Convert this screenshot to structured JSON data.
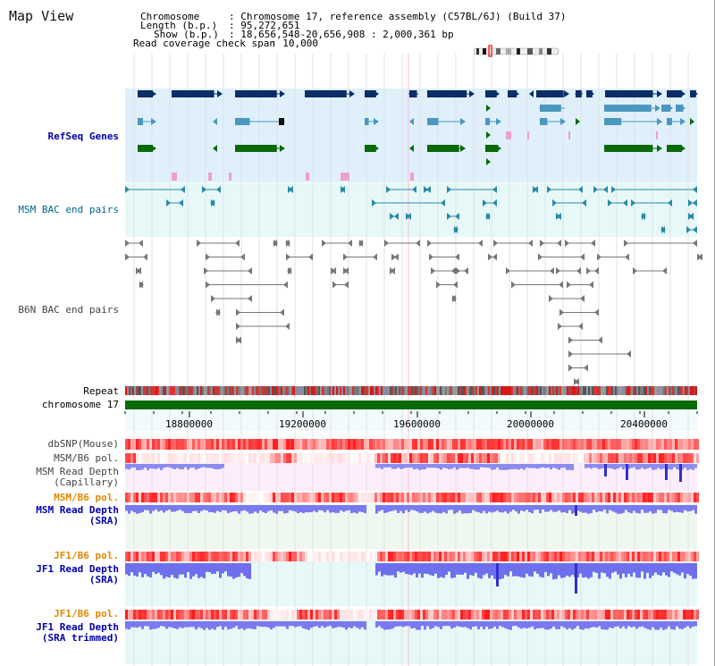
{
  "title": "Map View",
  "info": {
    "chromosome_key": "Chromosome",
    "chromosome_val": ": Chromosome 17, reference assembly (C57BL/6J) (Build 37)",
    "length_key": "Length (b.p.)",
    "length_val": ": 95,272,651",
    "show_key": "Show (b.p.)",
    "show_val": ": 18,656,548-20,656,908 : 2,000,361 bp",
    "coverage_key": "Read coverage check span",
    "coverage_val": ": 10,000"
  },
  "tracks": {
    "refseq": "RefSeq Genes",
    "msm_bac": "MSM BAC end pairs",
    "b6n_bac": "B6N BAC end pairs",
    "repeat": "Repeat",
    "chromosome": "chromosome 17",
    "dbsnp": "dbSNP(Mouse)",
    "msm_b6_pol_1": "MSM/B6 pol.",
    "msm_depth_cap_1": "MSM Read Depth",
    "msm_depth_cap_2": "(Capillary)",
    "msm_b6_pol_2": "MSM/B6 pol.",
    "msm_depth_sra_1": "MSM Read Depth",
    "msm_depth_sra_2": "(SRA)",
    "jf1_b6_pol_1": "JF1/B6 pol.",
    "jf1_depth_sra_1": "JF1 Read Depth",
    "jf1_depth_sra_2": "(SRA)",
    "jf1_b6_pol_2": "JF1/B6 pol.",
    "jf1_depth_trim_1": "JF1 Read Depth",
    "jf1_depth_trim_2": "(SRA trimmed)"
  },
  "axis": {
    "ticks": [
      "18800000",
      "19200000",
      "19600000",
      "20000000",
      "20400000"
    ]
  },
  "colors": {
    "refseq_bg": "#dff0fb",
    "msm_bac_bg": "#e6f8f8",
    "gene_dark": "#0b2e66",
    "gene_mid": "#4a97bf",
    "gene_green": "#0a6a0a",
    "chromosome_bar": "#0a6a0a",
    "pink_bg": "#fbeefa",
    "green_bg": "#eef8ee",
    "cyan_bg": "#e6f8f8",
    "depth_blue": "#6f6fee"
  }
}
